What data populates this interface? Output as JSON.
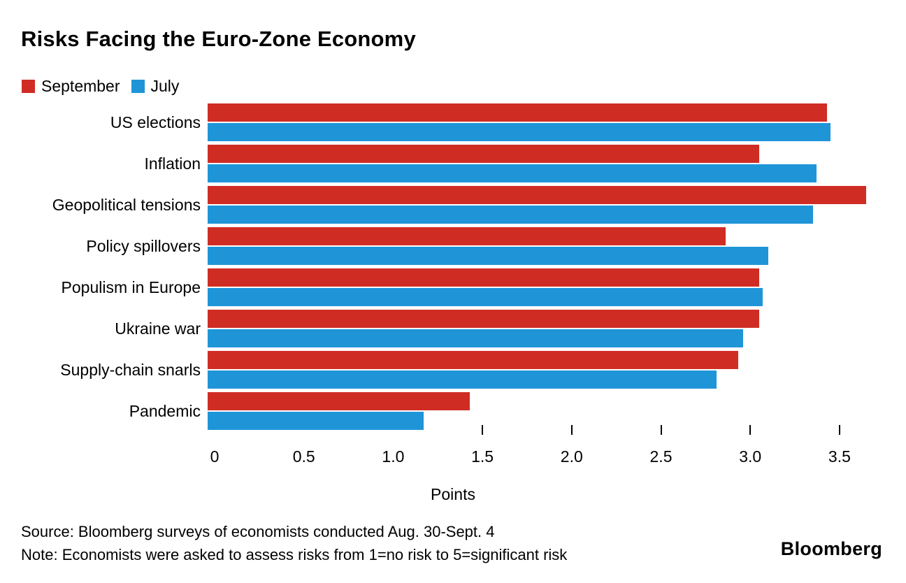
{
  "title": "Risks Facing the Euro-Zone Economy",
  "chart_data": {
    "type": "bar",
    "orientation": "horizontal",
    "title": "Risks Facing the Euro-Zone Economy",
    "categories": [
      "US elections",
      "Inflation",
      "Geopolitical tensions",
      "Policy spillovers",
      "Populism in Europe",
      "Ukraine war",
      "Supply-chain snarls",
      "Pandemic"
    ],
    "series": [
      {
        "name": "September",
        "color": "#cf2d24",
        "values": [
          3.47,
          3.09,
          3.69,
          2.9,
          3.09,
          3.09,
          2.97,
          1.47
        ]
      },
      {
        "name": "July",
        "color": "#1f95d8",
        "values": [
          3.49,
          3.41,
          3.39,
          3.14,
          3.11,
          3.0,
          2.85,
          1.21
        ]
      }
    ],
    "xlabel": "Points",
    "ylabel": "",
    "xlim": [
      0,
      3.75
    ],
    "tick_values": [
      0,
      0.5,
      1,
      1.5,
      2,
      2.5,
      3,
      3.5
    ],
    "tick_labels": [
      "0",
      "0.5",
      "1.0",
      "1.5",
      "2.0",
      "2.5",
      "3.0",
      "3.5"
    ],
    "ticks_with_marks": [
      1.5,
      2,
      2.5,
      3,
      3.5
    ],
    "grid": false,
    "legend_position": "top-left"
  },
  "source": "Source: Bloomberg surveys of economists conducted Aug. 30-Sept. 4",
  "note": "Note: Economists were asked to assess risks from 1=no risk to 5=significant risk",
  "branding": "Bloomberg"
}
